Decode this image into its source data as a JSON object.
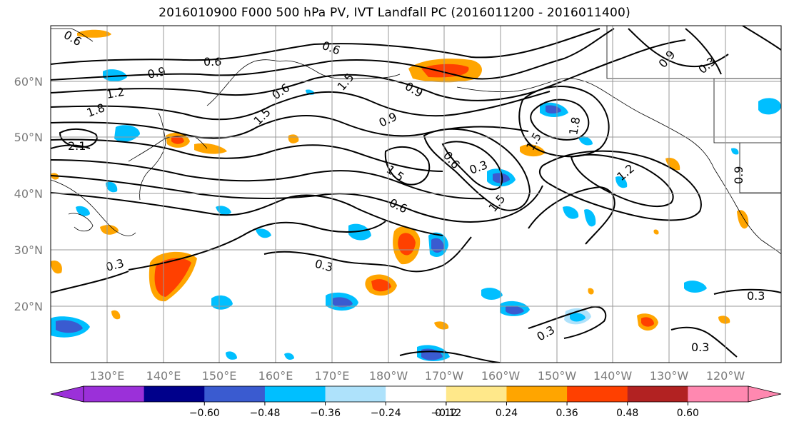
{
  "title": "2016010900 F000 500 hPa PV, IVT Landfall PC (2016011200 - 2016011400)",
  "lat_labels": [
    "60°N",
    "50°N",
    "40°N",
    "30°N",
    "20°N"
  ],
  "lon_labels": [
    "130°E",
    "140°E",
    "150°E",
    "160°E",
    "170°E",
    "180°W",
    "170°W",
    "160°W",
    "150°W",
    "140°W",
    "130°W",
    "120°W"
  ],
  "colorbar": {
    "colors": [
      "#9b30d9",
      "#00008b",
      "#3a5bd0",
      "#00bfff",
      "#aee2fb",
      "#ffffff",
      "#ffe88a",
      "#ffa500",
      "#ff4000",
      "#b22222",
      "#ff88b0"
    ],
    "ticks": [
      "−0.60",
      "−0.48",
      "−0.36",
      "−0.24",
      "−0.12",
      "0.12",
      "0.24",
      "0.36",
      "0.48",
      "0.60"
    ]
  },
  "contour_labels": [
    "0.6",
    "0.6",
    "0.6",
    "0.9",
    "1.2",
    "1.8",
    "2.1",
    "1.5",
    "0.6",
    "1.5",
    "0.9",
    "0.9",
    "0.6",
    "0.3",
    "1.5",
    "1.5",
    "0.6",
    "0.3",
    "0.3",
    "0.3",
    "0.3",
    "0.3",
    "1.5",
    "1.8",
    "0.9",
    "0.3",
    "1.2",
    "0.9"
  ]
}
